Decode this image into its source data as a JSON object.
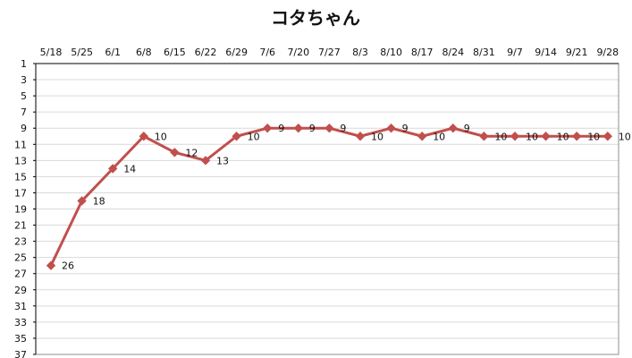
{
  "chart_data": {
    "type": "line",
    "title": "コタちゃん",
    "xlabel": "",
    "ylabel": "",
    "categories": [
      "5/18",
      "5/25",
      "6/1",
      "6/8",
      "6/15",
      "6/22",
      "6/29",
      "7/6",
      "7/20",
      "7/27",
      "8/3",
      "8/10",
      "8/17",
      "8/24",
      "8/31",
      "9/7",
      "9/14",
      "9/21",
      "9/28"
    ],
    "series": [
      {
        "values": [
          26,
          18,
          14,
          10,
          12,
          13,
          10,
          9,
          9,
          9,
          10,
          9,
          10,
          9,
          10,
          10,
          10,
          10,
          10
        ]
      }
    ],
    "y_ticks": [
      1,
      3,
      5,
      7,
      9,
      11,
      13,
      15,
      17,
      19,
      21,
      23,
      25,
      27,
      29,
      31,
      33,
      35,
      37
    ],
    "ylim": [
      1,
      37
    ],
    "y_reversed": true,
    "x_axis_position": "top",
    "grid": true,
    "legend": "none",
    "colors": {
      "line": "#C0504D",
      "grid": "#D9D9D9",
      "axis": "#000000"
    }
  }
}
